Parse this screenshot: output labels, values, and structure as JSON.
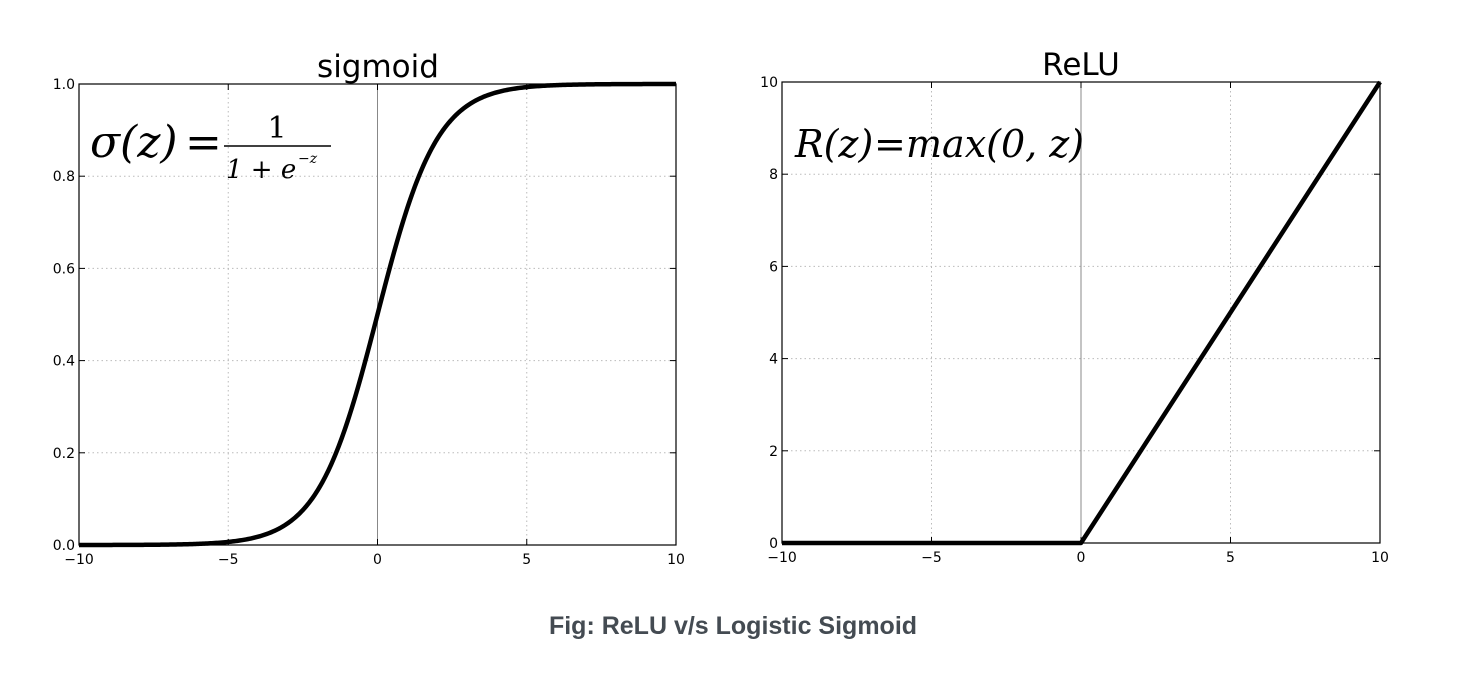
{
  "caption": "Fig: ReLU v/s Logistic Sigmoid",
  "colors": {
    "curve": "#000000",
    "grid": "#bbbbbb",
    "axis": "#000000",
    "caption": "#444b52"
  },
  "chart_data": [
    {
      "type": "line",
      "title": "sigmoid",
      "xlabel": "",
      "ylabel": "",
      "xlim": [
        -10,
        10
      ],
      "ylim": [
        0,
        1
      ],
      "xticks": [
        -10,
        -5,
        0,
        5,
        10
      ],
      "xtick_labels": [
        "−10",
        "−5",
        "0",
        "5",
        "10"
      ],
      "yticks": [
        0,
        0.2,
        0.4,
        0.6,
        0.8,
        1.0
      ],
      "ytick_labels": [
        "0.0",
        "0.2",
        "0.4",
        "0.6",
        "0.8",
        "1.0"
      ],
      "grid": true,
      "formula": {
        "lhs": "σ(z)",
        "eq": "=",
        "numerator": "1",
        "denominator": "1 + e",
        "exponent": "−z"
      },
      "x": [
        -10,
        -8,
        -6,
        -5,
        -4,
        -3,
        -2,
        -1,
        0,
        1,
        2,
        3,
        4,
        5,
        6,
        8,
        10
      ],
      "y": [
        4.54e-05,
        0.000335,
        0.00247,
        0.00669,
        0.018,
        0.0474,
        0.1192,
        0.2689,
        0.5,
        0.7311,
        0.8808,
        0.9526,
        0.982,
        0.9933,
        0.9975,
        0.9997,
        0.99995
      ]
    },
    {
      "type": "line",
      "title": "ReLU",
      "xlabel": "",
      "ylabel": "",
      "xlim": [
        -10,
        10
      ],
      "ylim": [
        0,
        10
      ],
      "xticks": [
        -10,
        -5,
        0,
        5,
        10
      ],
      "xtick_labels": [
        "−10",
        "−5",
        "0",
        "5",
        "10"
      ],
      "yticks": [
        0,
        2,
        4,
        6,
        8,
        10
      ],
      "ytick_labels": [
        "0",
        "2",
        "4",
        "6",
        "8",
        "10"
      ],
      "grid": true,
      "formula": {
        "lhs": "R(z)",
        "eq": "=",
        "rhs": "max(0,  z)"
      },
      "x": [
        -10,
        0,
        10
      ],
      "y": [
        0,
        0,
        10
      ]
    }
  ]
}
